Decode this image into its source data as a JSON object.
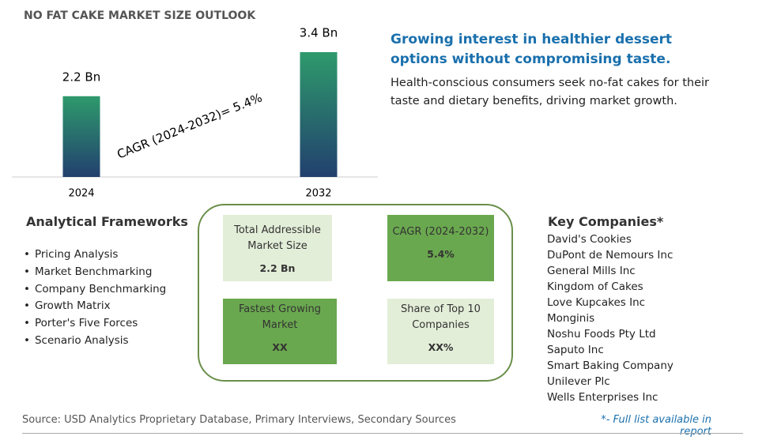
{
  "chart_data": {
    "type": "bar",
    "title": "NO FAT CAKE MARKET SIZE OUTLOOK",
    "categories": [
      "2024",
      "2032"
    ],
    "values": [
      2.2,
      3.4
    ],
    "value_labels": [
      "2.2 Bn",
      "3.4 Bn"
    ],
    "annotation": "CAGR (2024-2032)=  5.4%",
    "colors": [
      "#2e9a6c",
      "#22406e"
    ]
  },
  "headline": "Growing interest in healthier dessert options without compromising taste.",
  "description": "Health-conscious consumers seek no-fat cakes for their taste and dietary benefits, driving market growth.",
  "frameworks": {
    "title": "Analytical Frameworks",
    "items": [
      "Pricing Analysis",
      "Market Benchmarking",
      "Company Benchmarking",
      "Growth Matrix",
      "Porter's Five Forces",
      "Scenario Analysis"
    ]
  },
  "summary": [
    {
      "label": "Total Addressible Market Size",
      "value": "2.2 Bn"
    },
    {
      "label": "CAGR (2024-2032)",
      "value": "5.4%"
    },
    {
      "label": "Fastest Growing Market",
      "value": "XX"
    },
    {
      "label": "Share of Top 10 Companies",
      "value": "XX%"
    }
  ],
  "companies": {
    "title": "Key Companies*",
    "items": [
      "David's Cookies",
      "DuPont de Nemours Inc",
      "General Mills Inc",
      "Kingdom of Cakes",
      "Love Kupcakes Inc",
      "Monginis",
      "Noshu Foods Pty Ltd",
      "Saputo Inc",
      "Smart Baking Company",
      "Unilever Plc",
      "Wells Enterprises Inc"
    ]
  },
  "source": "Source: USD Analytics Proprietary Database, Primary Interviews, Secondary Sources",
  "note": "*- Full list available in report"
}
